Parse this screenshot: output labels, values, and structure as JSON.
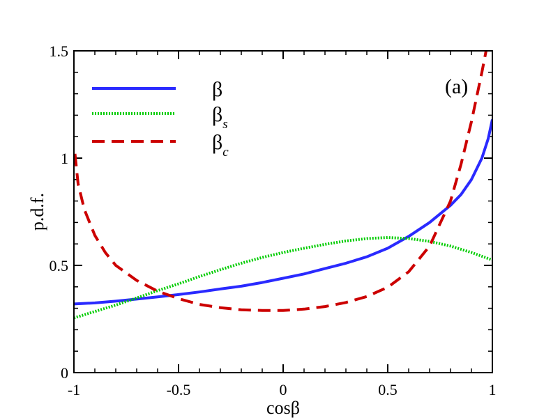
{
  "chart_data": {
    "type": "line",
    "title": "",
    "panel_label": "(a)",
    "xlabel": "cosβ",
    "ylabel": "p.d.f.",
    "xlim": [
      -1,
      1
    ],
    "ylim": [
      0,
      1.5
    ],
    "x_major_ticks": [
      -1,
      -0.5,
      0,
      0.5,
      1
    ],
    "x_tick_labels": [
      "-1",
      "-0.5",
      "0",
      "0.5",
      "1"
    ],
    "y_major_ticks": [
      0,
      0.5,
      1,
      1.5
    ],
    "y_tick_labels": [
      "0",
      "0.5",
      "1",
      "1.5"
    ],
    "x_minor_step": 0.1,
    "y_minor_step": 0.1,
    "grid": false,
    "legend_position": "top-left",
    "series": [
      {
        "name": "β",
        "name_base": "β",
        "name_sub": "",
        "color": "#2a2aff",
        "style": "solid",
        "points": [
          [
            -1,
            0.32
          ],
          [
            -0.9,
            0.325
          ],
          [
            -0.8,
            0.333
          ],
          [
            -0.7,
            0.343
          ],
          [
            -0.6,
            0.353
          ],
          [
            -0.5,
            0.364
          ],
          [
            -0.4,
            0.376
          ],
          [
            -0.3,
            0.39
          ],
          [
            -0.2,
            0.403
          ],
          [
            -0.1,
            0.42
          ],
          [
            0,
            0.44
          ],
          [
            0.1,
            0.46
          ],
          [
            0.2,
            0.485
          ],
          [
            0.3,
            0.51
          ],
          [
            0.4,
            0.54
          ],
          [
            0.5,
            0.58
          ],
          [
            0.6,
            0.635
          ],
          [
            0.7,
            0.7
          ],
          [
            0.8,
            0.78
          ],
          [
            0.85,
            0.83
          ],
          [
            0.9,
            0.9
          ],
          [
            0.95,
            1.0
          ],
          [
            0.98,
            1.09
          ],
          [
            1.0,
            1.18
          ]
        ]
      },
      {
        "name": "βs",
        "name_base": "β",
        "name_sub": "s",
        "color": "#00cc00",
        "style": "dotted",
        "points": [
          [
            -1,
            0.255
          ],
          [
            -0.9,
            0.285
          ],
          [
            -0.8,
            0.315
          ],
          [
            -0.7,
            0.348
          ],
          [
            -0.6,
            0.382
          ],
          [
            -0.5,
            0.414
          ],
          [
            -0.4,
            0.448
          ],
          [
            -0.3,
            0.48
          ],
          [
            -0.2,
            0.51
          ],
          [
            -0.1,
            0.537
          ],
          [
            0,
            0.56
          ],
          [
            0.1,
            0.58
          ],
          [
            0.2,
            0.598
          ],
          [
            0.3,
            0.614
          ],
          [
            0.4,
            0.625
          ],
          [
            0.5,
            0.63
          ],
          [
            0.6,
            0.625
          ],
          [
            0.7,
            0.612
          ],
          [
            0.8,
            0.59
          ],
          [
            0.9,
            0.56
          ],
          [
            1.0,
            0.525
          ]
        ]
      },
      {
        "name": "βc",
        "name_base": "β",
        "name_sub": "c",
        "color": "#cc0000",
        "style": "dashed",
        "points": [
          [
            -0.995,
            1.02
          ],
          [
            -0.98,
            0.88
          ],
          [
            -0.95,
            0.76
          ],
          [
            -0.9,
            0.64
          ],
          [
            -0.85,
            0.56
          ],
          [
            -0.8,
            0.5
          ],
          [
            -0.7,
            0.43
          ],
          [
            -0.6,
            0.38
          ],
          [
            -0.5,
            0.345
          ],
          [
            -0.4,
            0.318
          ],
          [
            -0.3,
            0.303
          ],
          [
            -0.2,
            0.293
          ],
          [
            -0.1,
            0.29
          ],
          [
            0,
            0.29
          ],
          [
            0.1,
            0.296
          ],
          [
            0.2,
            0.308
          ],
          [
            0.3,
            0.327
          ],
          [
            0.4,
            0.355
          ],
          [
            0.5,
            0.398
          ],
          [
            0.6,
            0.47
          ],
          [
            0.7,
            0.59
          ],
          [
            0.8,
            0.8
          ],
          [
            0.85,
            0.97
          ],
          [
            0.9,
            1.17
          ],
          [
            0.95,
            1.4
          ],
          [
            0.97,
            1.5
          ]
        ]
      }
    ]
  }
}
